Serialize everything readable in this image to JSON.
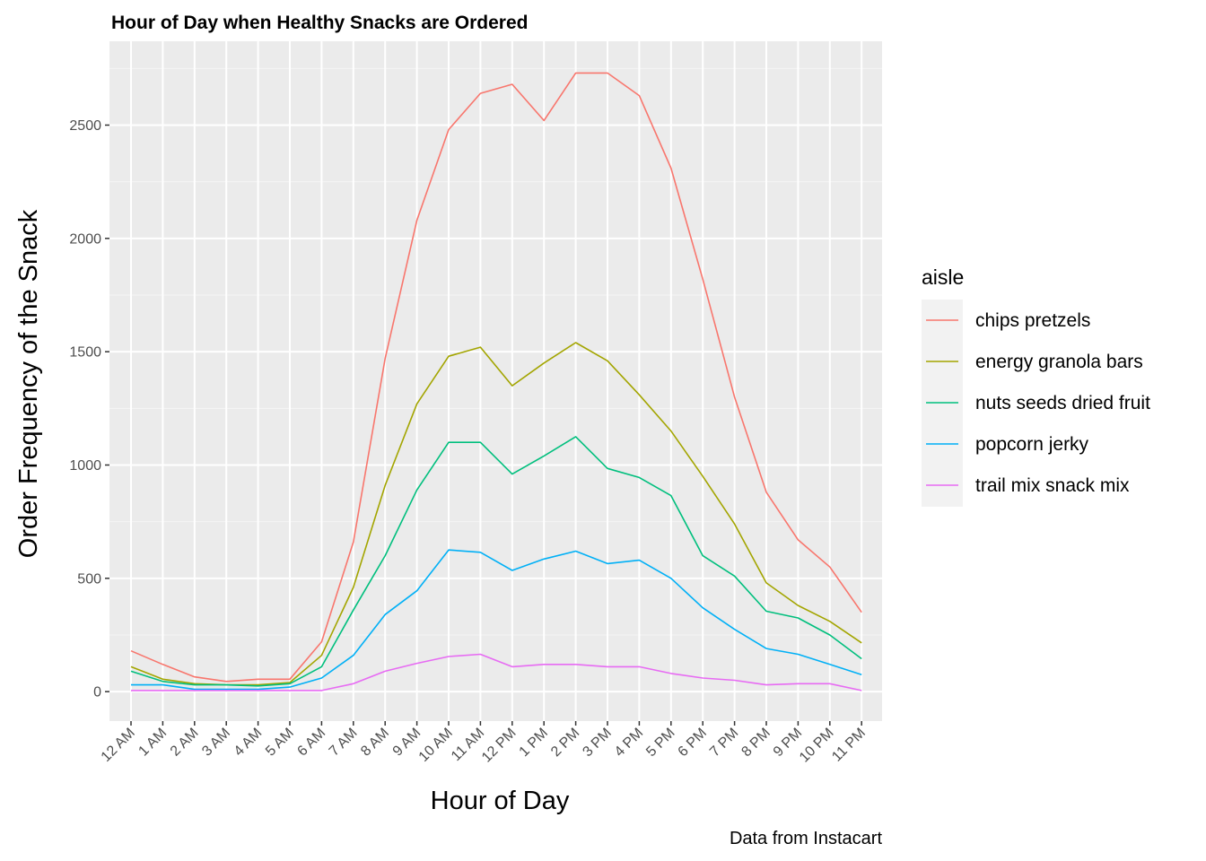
{
  "chart_data": {
    "type": "line",
    "title": "Hour of Day when Healthy Snacks are Ordered",
    "xlabel": "Hour of Day",
    "ylabel": "Order Frequency of the Snack",
    "caption": "Data from Instacart",
    "categories": [
      "12 AM",
      "1 AM",
      "2 AM",
      "3 AM",
      "4 AM",
      "5 AM",
      "6 AM",
      "7 AM",
      "8 AM",
      "9 AM",
      "10 AM",
      "11 AM",
      "12 PM",
      "1 PM",
      "2 PM",
      "3 PM",
      "4 PM",
      "5 PM",
      "6 PM",
      "7 PM",
      "8 PM",
      "9 PM",
      "10 PM",
      "11 PM"
    ],
    "ylim": [
      -130,
      2870
    ],
    "yticks": [
      0,
      500,
      1000,
      1500,
      2000,
      2500
    ],
    "yticks_labels": [
      "0",
      "500",
      "1000",
      "1500",
      "2000",
      "2500"
    ],
    "grid": true,
    "legend": {
      "title": "aisle",
      "position": "right"
    },
    "series": [
      {
        "name": "chips pretzels",
        "color": "#F8766D",
        "values": [
          180,
          120,
          65,
          45,
          55,
          55,
          220,
          660,
          1470,
          2080,
          2480,
          2640,
          2680,
          2520,
          2730,
          2730,
          2630,
          2310,
          1820,
          1300,
          880,
          670,
          550,
          350
        ]
      },
      {
        "name": "energy granola bars",
        "color": "#A3A500",
        "values": [
          110,
          55,
          35,
          30,
          30,
          40,
          160,
          460,
          910,
          1270,
          1480,
          1520,
          1350,
          1450,
          1540,
          1460,
          1310,
          1150,
          950,
          740,
          480,
          380,
          310,
          215
        ]
      },
      {
        "name": "nuts seeds dried fruit",
        "color": "#00BF7D",
        "values": [
          90,
          45,
          30,
          30,
          25,
          35,
          110,
          360,
          600,
          890,
          1100,
          1100,
          960,
          1040,
          1125,
          985,
          945,
          865,
          600,
          510,
          355,
          325,
          250,
          145
        ]
      },
      {
        "name": "popcorn jerky",
        "color": "#00B0F6",
        "values": [
          30,
          30,
          10,
          10,
          10,
          20,
          60,
          160,
          340,
          445,
          625,
          615,
          535,
          585,
          620,
          565,
          580,
          500,
          370,
          275,
          190,
          165,
          120,
          75
        ]
      },
      {
        "name": "trail mix snack mix",
        "color": "#E76BF3",
        "values": [
          5,
          5,
          5,
          5,
          5,
          5,
          5,
          35,
          90,
          125,
          155,
          165,
          110,
          120,
          120,
          110,
          110,
          80,
          60,
          50,
          30,
          35,
          35,
          5
        ]
      }
    ]
  }
}
